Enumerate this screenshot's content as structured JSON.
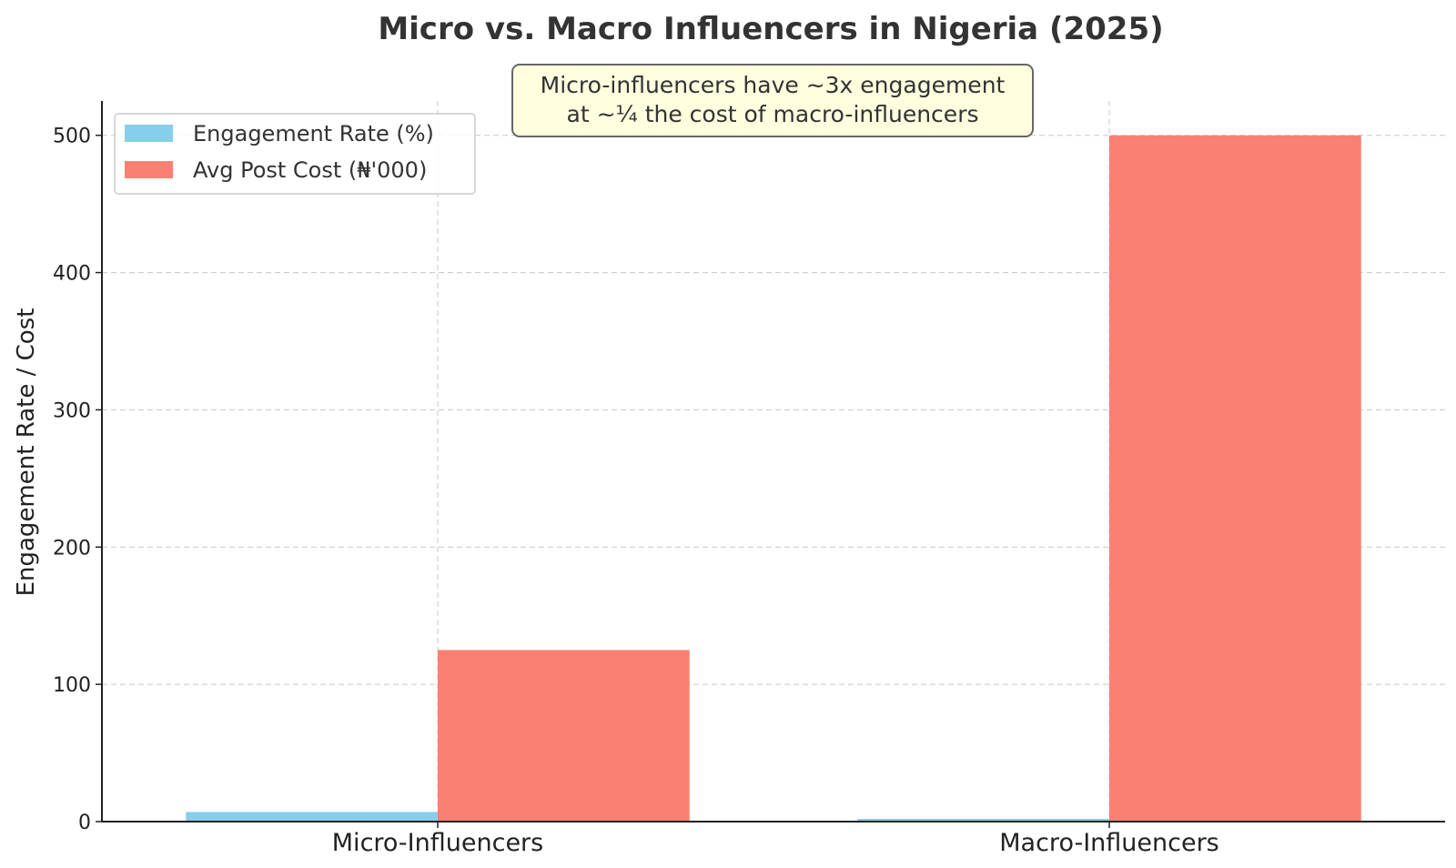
{
  "chart_data": {
    "type": "bar",
    "title": "Micro vs. Macro Influencers in Nigeria (2025)",
    "xlabel": "",
    "ylabel": "Engagement Rate / Cost",
    "categories": [
      "Micro-Influencers",
      "Macro-Influencers"
    ],
    "series": [
      {
        "name": "Engagement Rate (%)",
        "values": [
          7,
          2
        ],
        "color": "#87CEEB"
      },
      {
        "name": "Avg Post Cost (₦'000)",
        "values": [
          125,
          500
        ],
        "color": "#FA8072"
      }
    ],
    "ylim": [
      0,
      525
    ],
    "yticks": [
      "0",
      "100",
      "200",
      "300",
      "400",
      "500"
    ],
    "grid": true,
    "legend_position": "top-left",
    "annotation": {
      "line1": "Micro-influencers have ~3x engagement",
      "line2": "at ~¼ the cost of macro-influencers",
      "background": "#FFFFE0"
    }
  }
}
